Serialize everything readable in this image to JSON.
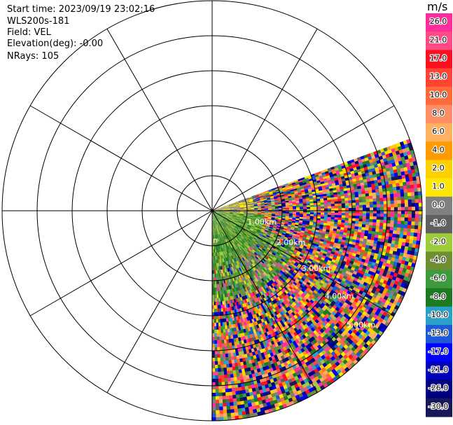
{
  "header": {
    "start_time": "Start time: 2023/09/19 23:02:16",
    "instrument": "WLS200s-181",
    "field": "Field: VEL",
    "elevation": "Elevation(deg): -0.00",
    "nrays": "NRays: 105"
  },
  "chart_data": {
    "type": "heatmap",
    "projection": "polar-ppi",
    "field": "VEL",
    "units": "m/s",
    "sector_azimuth_deg": [
      70,
      180
    ],
    "range_rings_km": [
      1.0,
      2.0,
      3.0,
      4.0,
      5.0,
      6.0
    ],
    "range_ring_labels": [
      "1.00km",
      "2.00km",
      "3.00km",
      "4.00km",
      "5.00km"
    ],
    "partial_center_label": "n",
    "radial_spokes_deg": [
      0,
      30,
      60,
      90,
      120,
      150,
      180,
      210,
      240,
      270,
      300,
      330
    ],
    "max_range_km": 6.0,
    "colorbar": {
      "unit_label": "m/s",
      "ticks": [
        "26.0",
        "21.0",
        "17.0",
        "13.0",
        "10.0",
        "8.0",
        "6.0",
        "4.0",
        "2.0",
        "1.0",
        "0.0",
        "-1.0",
        "-2.0",
        "-4.0",
        "-6.0",
        "-8.0",
        "-10.0",
        "-13.0",
        "-17.0",
        "-21.0",
        "-26.0",
        "-30.0"
      ],
      "colors": [
        "#ff2d9b",
        "#ff4a84",
        "#ff0f1e",
        "#ff4433",
        "#ff6a3a",
        "#ff8e65",
        "#ffb060",
        "#ff9a00",
        "#ffd000",
        "#ffe800",
        "#808080",
        "#606060",
        "#9dcc3a",
        "#6f8f32",
        "#3f9a3f",
        "#1e7a20",
        "#2aa0c8",
        "#1e5ad7",
        "#0000ff",
        "#0000bb",
        "#000080",
        "#181858"
      ]
    }
  },
  "colors": {
    "near_field_green": "#3f9a3f",
    "background": "#ffffff",
    "grid": "#000000"
  }
}
